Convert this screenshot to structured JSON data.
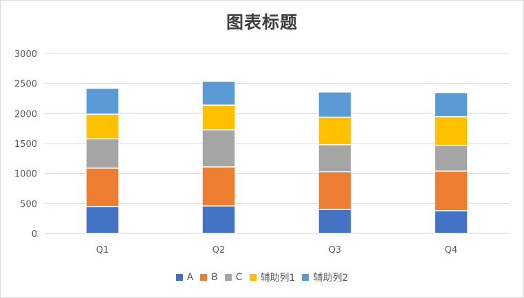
{
  "chart_data": {
    "type": "bar",
    "stacked": true,
    "title": "图表标题",
    "categories": [
      "Q1",
      "Q2",
      "Q3",
      "Q4"
    ],
    "ylim": [
      0,
      3000
    ],
    "yticks": [
      "0",
      "500",
      "1000",
      "1500",
      "2000",
      "2500",
      "3000"
    ],
    "ytick_values": [
      0,
      500,
      1000,
      1500,
      2000,
      2500,
      3000
    ],
    "grid": true,
    "legend_position": "bottom",
    "series": [
      {
        "name": "A",
        "color": "#4472C4",
        "values": [
          450,
          460,
          400,
          380
        ]
      },
      {
        "name": "B",
        "color": "#ED7D31",
        "values": [
          640,
          650,
          630,
          660
        ]
      },
      {
        "name": "C",
        "color": "#A5A5A5",
        "values": [
          490,
          620,
          450,
          430
        ]
      },
      {
        "name": "辅助列1",
        "color": "#FFC000",
        "values": [
          410,
          410,
          460,
          480
        ]
      },
      {
        "name": "辅助列2",
        "color": "#5B9BD5",
        "values": [
          430,
          400,
          420,
          400
        ]
      }
    ]
  }
}
